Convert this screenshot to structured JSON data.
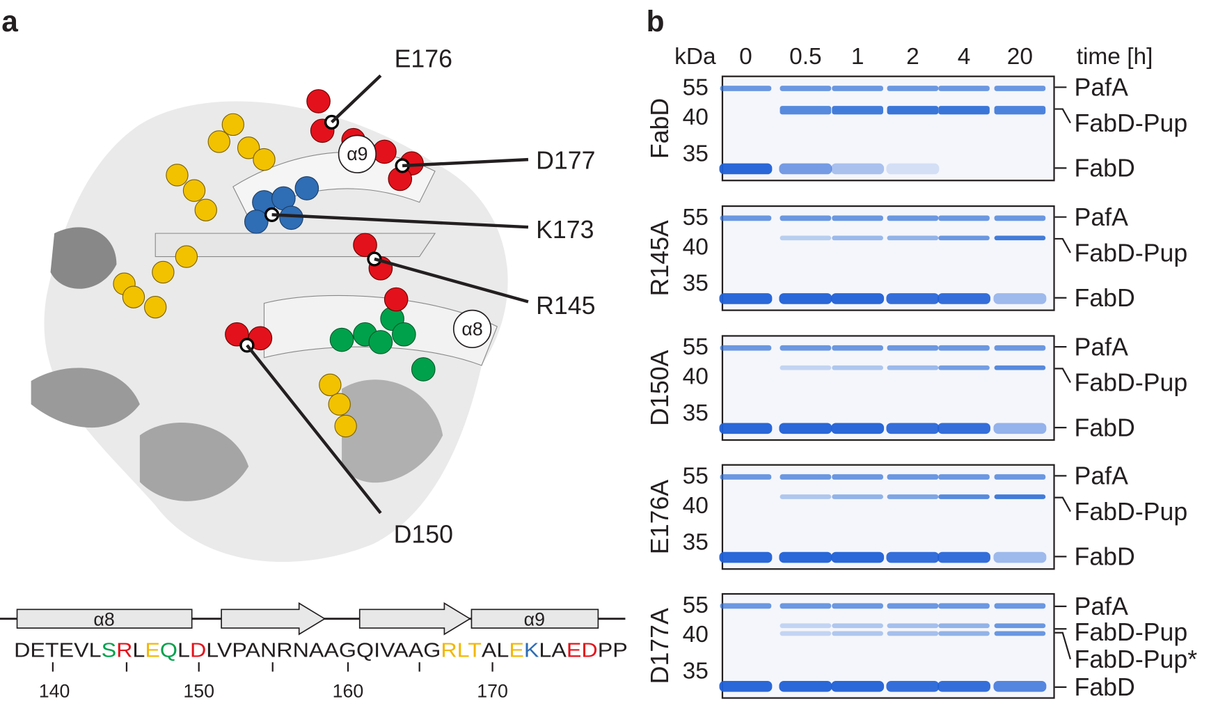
{
  "panel_a": {
    "label": "a",
    "residue_labels": [
      "E176",
      "D177",
      "K173",
      "R145",
      "D150"
    ],
    "helix_labels": [
      "α9",
      "α8"
    ],
    "topology_labels": [
      "α8",
      "α9"
    ],
    "sequence": [
      {
        "text": "DETEVL",
        "color": "#231f20"
      },
      {
        "text": "S",
        "color": "#00a14b"
      },
      {
        "text": "R",
        "color": "#e3111b"
      },
      {
        "text": "L",
        "color": "#231f20"
      },
      {
        "text": "E",
        "color": "#f2b705"
      },
      {
        "text": "Q",
        "color": "#00a14b"
      },
      {
        "text": "L",
        "color": "#231f20"
      },
      {
        "text": "D",
        "color": "#e3111b"
      },
      {
        "text": "LVPANRNAAGQIVAAG",
        "color": "#231f20"
      },
      {
        "text": "RLT",
        "color": "#f2b705"
      },
      {
        "text": "AL",
        "color": "#231f20"
      },
      {
        "text": "E",
        "color": "#f2b705"
      },
      {
        "text": "K",
        "color": "#2f6db5"
      },
      {
        "text": "LA",
        "color": "#231f20"
      },
      {
        "text": "ED",
        "color": "#e3111b"
      },
      {
        "text": "PP",
        "color": "#231f20"
      }
    ],
    "ruler": [
      "140",
      "150",
      "160",
      "170"
    ]
  },
  "panel_b": {
    "label": "b",
    "mw_unit": "kDa",
    "time_label": "time [h]",
    "times": [
      "0",
      "0.5",
      "1",
      "2",
      "4",
      "20"
    ],
    "gels": [
      {
        "name": "FabD",
        "markers": [
          "55",
          "40",
          "35"
        ],
        "bands": [
          "PafA",
          "FabD-Pup",
          "FabD"
        ]
      },
      {
        "name": "R145A",
        "markers": [
          "55",
          "40",
          "35"
        ],
        "bands": [
          "PafA",
          "FabD-Pup",
          "FabD"
        ]
      },
      {
        "name": "D150A",
        "markers": [
          "55",
          "40",
          "35"
        ],
        "bands": [
          "PafA",
          "FabD-Pup",
          "FabD"
        ]
      },
      {
        "name": "E176A",
        "markers": [
          "55",
          "40",
          "35"
        ],
        "bands": [
          "PafA",
          "FabD-Pup",
          "FabD"
        ]
      },
      {
        "name": "D177A",
        "markers": [
          "55",
          "40",
          "35"
        ],
        "bands": [
          "PafA",
          "FabD-Pup",
          "FabD-Pup*",
          "FabD"
        ]
      }
    ]
  }
}
